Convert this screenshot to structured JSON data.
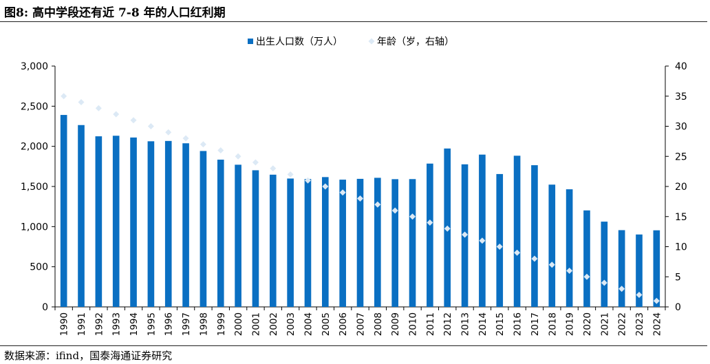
{
  "title": "图8:  高中学段还有近 7-8 年的人口红利期",
  "source": "数据来源：ifind，国泰海通证券研究",
  "chart_data": {
    "type": "bar",
    "legend": {
      "placement": "top-center"
    },
    "categories": [
      "1990",
      "1991",
      "1992",
      "1993",
      "1994",
      "1995",
      "1996",
      "1997",
      "1998",
      "1999",
      "2000",
      "2001",
      "2002",
      "2003",
      "2004",
      "2005",
      "2006",
      "2007",
      "2008",
      "2009",
      "2010",
      "2011",
      "2012",
      "2013",
      "2014",
      "2015",
      "2016",
      "2017",
      "2018",
      "2019",
      "2020",
      "2021",
      "2022",
      "2023",
      "2024"
    ],
    "series": [
      {
        "name": "出生人口数（万人）",
        "type": "bar",
        "axis": "left",
        "color": "#0a6fc2",
        "values": [
          2391,
          2265,
          2125,
          2132,
          2110,
          2063,
          2067,
          2038,
          1942,
          1834,
          1771,
          1702,
          1647,
          1599,
          1593,
          1617,
          1585,
          1595,
          1608,
          1591,
          1592,
          1785,
          1973,
          1776,
          1897,
          1655,
          1883,
          1765,
          1523,
          1465,
          1202,
          1062,
          956,
          902,
          954
        ]
      },
      {
        "name": "年龄（岁，右轴）",
        "type": "scatter",
        "axis": "right",
        "color": "#dce9f5",
        "values": [
          35,
          34,
          33,
          32,
          31,
          30,
          29,
          28,
          27,
          26,
          25,
          24,
          23,
          22,
          21,
          20,
          19,
          18,
          17,
          16,
          15,
          14,
          13,
          12,
          11,
          10,
          9,
          8,
          7,
          6,
          5,
          4,
          3,
          2,
          1
        ]
      }
    ],
    "y_left": {
      "min": 0,
      "max": 3000,
      "ticks": [
        "0",
        "500",
        "1,000",
        "1,500",
        "2,000",
        "2,500",
        "3,000"
      ]
    },
    "y_right": {
      "min": 0,
      "max": 40,
      "ticks": [
        "0",
        "5",
        "10",
        "15",
        "20",
        "25",
        "30",
        "35",
        "40"
      ]
    },
    "grid": false
  }
}
